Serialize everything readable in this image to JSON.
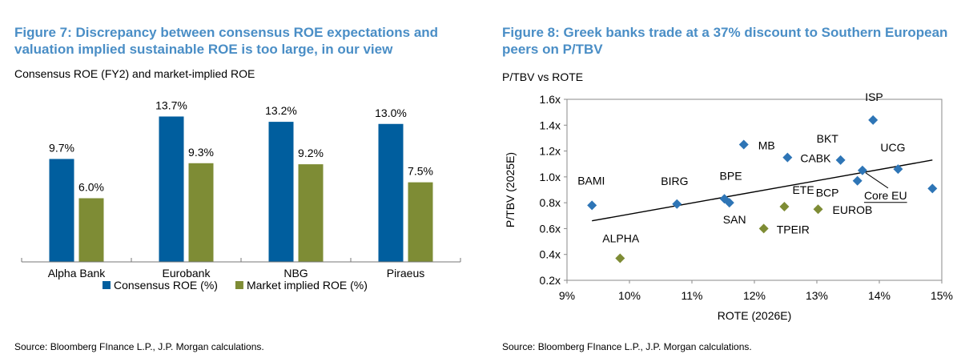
{
  "left": {
    "title": "Figure 7: Discrepancy between consensus ROE expectations and valuation implied sustainable ROE is too large, in our view",
    "subtitle": "Consensus ROE (FY2) and market-implied ROE",
    "source": "Source: Bloomberg FInance L.P., J.P. Morgan calculations."
  },
  "right": {
    "title": "Figure 8: Greek banks trade at a 37% discount to Southern European peers on P/TBV",
    "subtitle": "P/TBV vs ROTE",
    "source": "Source: Bloomberg FInance L.P., J.P. Morgan calculations."
  },
  "chart_data": [
    {
      "type": "bar",
      "categories": [
        "Alpha Bank",
        "Eurobank",
        "NBG",
        "Piraeus"
      ],
      "series": [
        {
          "name": "Consensus ROE (%)",
          "values": [
            9.7,
            13.7,
            13.2,
            13.0
          ],
          "labels": [
            "9.7%",
            "13.7%",
            "13.2%",
            "13.0%"
          ],
          "color": "#005e9e"
        },
        {
          "name": "Market implied ROE (%)",
          "values": [
            6.0,
            9.3,
            9.2,
            7.5
          ],
          "labels": [
            "6.0%",
            "9.3%",
            "9.2%",
            "7.5%"
          ],
          "color": "#7e8c35"
        }
      ],
      "ylim": [
        0,
        16
      ],
      "legend": "bottom"
    },
    {
      "type": "scatter",
      "xlabel": "ROTE (2026E)",
      "ylabel": "P/TBV (2025E)",
      "xlim": [
        9,
        15
      ],
      "ylim": [
        0.2,
        1.6
      ],
      "xticks": [
        9,
        10,
        11,
        12,
        13,
        14,
        15
      ],
      "xtick_labels": [
        "9%",
        "10%",
        "11%",
        "12%",
        "13%",
        "14%",
        "15%"
      ],
      "yticks": [
        0.2,
        0.4,
        0.6,
        0.8,
        1.0,
        1.2,
        1.4,
        1.6
      ],
      "ytick_labels": [
        "0.2x",
        "0.4x",
        "0.6x",
        "0.8x",
        "1.0x",
        "1.2x",
        "1.4x",
        "1.6x"
      ],
      "series": [
        {
          "group": "peers",
          "color": "#2e75b6",
          "points": [
            {
              "label": "BAMI",
              "x": 9.4,
              "y": 0.78
            },
            {
              "label": "BIRG",
              "x": 10.76,
              "y": 0.79
            },
            {
              "label": "BPE",
              "x": 11.52,
              "y": 0.83
            },
            {
              "label": "SAN",
              "x": 11.6,
              "y": 0.8
            },
            {
              "label": "MB",
              "x": 11.83,
              "y": 1.25
            },
            {
              "label": "CABK",
              "x": 12.53,
              "y": 1.15
            },
            {
              "label": "BKT",
              "x": 13.38,
              "y": 1.13
            },
            {
              "label": "BCP",
              "x": 13.65,
              "y": 0.97
            },
            {
              "label": "Core EU",
              "x": 13.73,
              "y": 1.05
            },
            {
              "label": "ISP",
              "x": 13.9,
              "y": 1.44
            },
            {
              "label": "UCG",
              "x": 14.3,
              "y": 1.06
            },
            {
              "label": "",
              "x": 14.85,
              "y": 0.91
            }
          ]
        },
        {
          "group": "greek",
          "color": "#7e8c35",
          "points": [
            {
              "label": "ALPHA",
              "x": 9.85,
              "y": 0.37
            },
            {
              "label": "TPEIR",
              "x": 12.15,
              "y": 0.6
            },
            {
              "label": "ETE",
              "x": 12.48,
              "y": 0.77
            },
            {
              "label": "EUROB",
              "x": 13.02,
              "y": 0.75
            }
          ]
        }
      ],
      "trendline": {
        "x": [
          9.4,
          14.85
        ],
        "y": [
          0.66,
          1.13
        ]
      }
    }
  ]
}
